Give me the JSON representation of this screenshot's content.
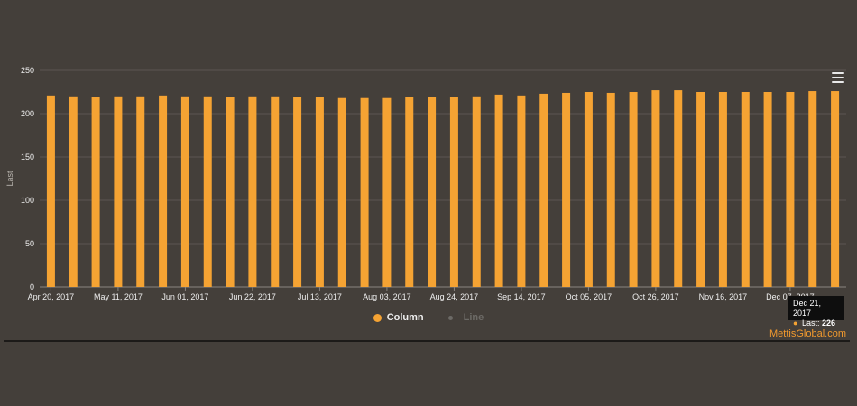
{
  "chart_data": {
    "type": "bar",
    "title": "",
    "xlabel": "",
    "ylabel": "Last",
    "ylim": [
      0,
      250
    ],
    "y_ticks": [
      "0",
      "50",
      "100",
      "150",
      "200",
      "250"
    ],
    "x_tick_labels": [
      "Apr 20, 2017",
      "May 11, 2017",
      "Jun 01, 2017",
      "Jun 22, 2017",
      "Jul 13, 2017",
      "Aug 03, 2017",
      "Aug 24, 2017",
      "Sep 14, 2017",
      "Oct 05, 2017",
      "Oct 26, 2017",
      "Nov 16, 2017",
      "Dec 07, 2017"
    ],
    "grid": true,
    "series": [
      {
        "name": "Column",
        "color": "#f5a333",
        "values": [
          221,
          220,
          219,
          220,
          220,
          221,
          220,
          220,
          219,
          220,
          220,
          219,
          219,
          218,
          218,
          218,
          219,
          219,
          219,
          220,
          222,
          221,
          223,
          224,
          225,
          224,
          225,
          227,
          227,
          225,
          225,
          225,
          225,
          225,
          226,
          226
        ]
      }
    ],
    "legend": [
      {
        "name": "Column",
        "color": "#f5a333",
        "active": true
      },
      {
        "name": "Line",
        "color": "#6c6a66",
        "active": false
      }
    ],
    "legend_position": "bottom-center",
    "tooltip": {
      "date": "Dec 21, 2017",
      "label": "Last:",
      "value": "226"
    }
  },
  "credit": "MettisGlobal.com",
  "colors": {
    "background": "#443f3a",
    "bar": "#f5a333",
    "grid": "#5b5651",
    "axis_text": "#eeeeee",
    "credit": "#f29a2e"
  }
}
